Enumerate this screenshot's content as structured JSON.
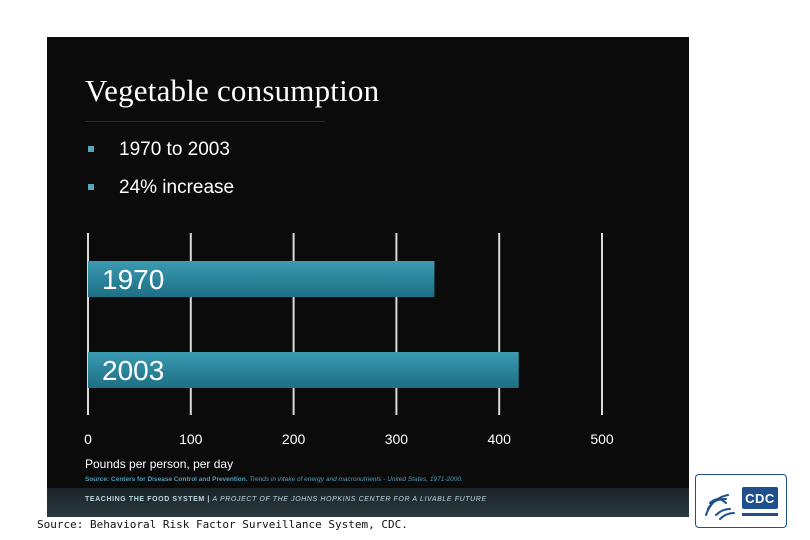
{
  "slide": {
    "title": "Vegetable consumption",
    "bullets": [
      "1970 to 2003",
      "24% increase"
    ],
    "source_note_lead": "Source: Centers for Disease Control and Prevention.",
    "source_note_detail": "Trends in intake of energy and macronutrients - United States, 1971-2000.",
    "footer_lead": "TEACHING THE FOOD SYSTEM",
    "footer_separator": "|",
    "footer_detail": "A PROJECT OF THE JOHNS HOPKINS CENTER FOR A LIVABLE FUTURE"
  },
  "chart_data": {
    "type": "bar",
    "orientation": "horizontal",
    "categories": [
      "1970",
      "2003"
    ],
    "values": [
      337,
      419
    ],
    "xlabel": "Pounds per person, per day",
    "xlim": [
      0,
      500
    ],
    "xticks": [
      0,
      100,
      200,
      300,
      400,
      500
    ],
    "grid": true,
    "bar_color": "#2e8aa0",
    "background": "#0b0b0b"
  },
  "caption": "Source: Behavioral Risk Factor Surveillance System, CDC.",
  "logo": {
    "icon": "hhs-eagle-icon",
    "text": "CDC"
  }
}
